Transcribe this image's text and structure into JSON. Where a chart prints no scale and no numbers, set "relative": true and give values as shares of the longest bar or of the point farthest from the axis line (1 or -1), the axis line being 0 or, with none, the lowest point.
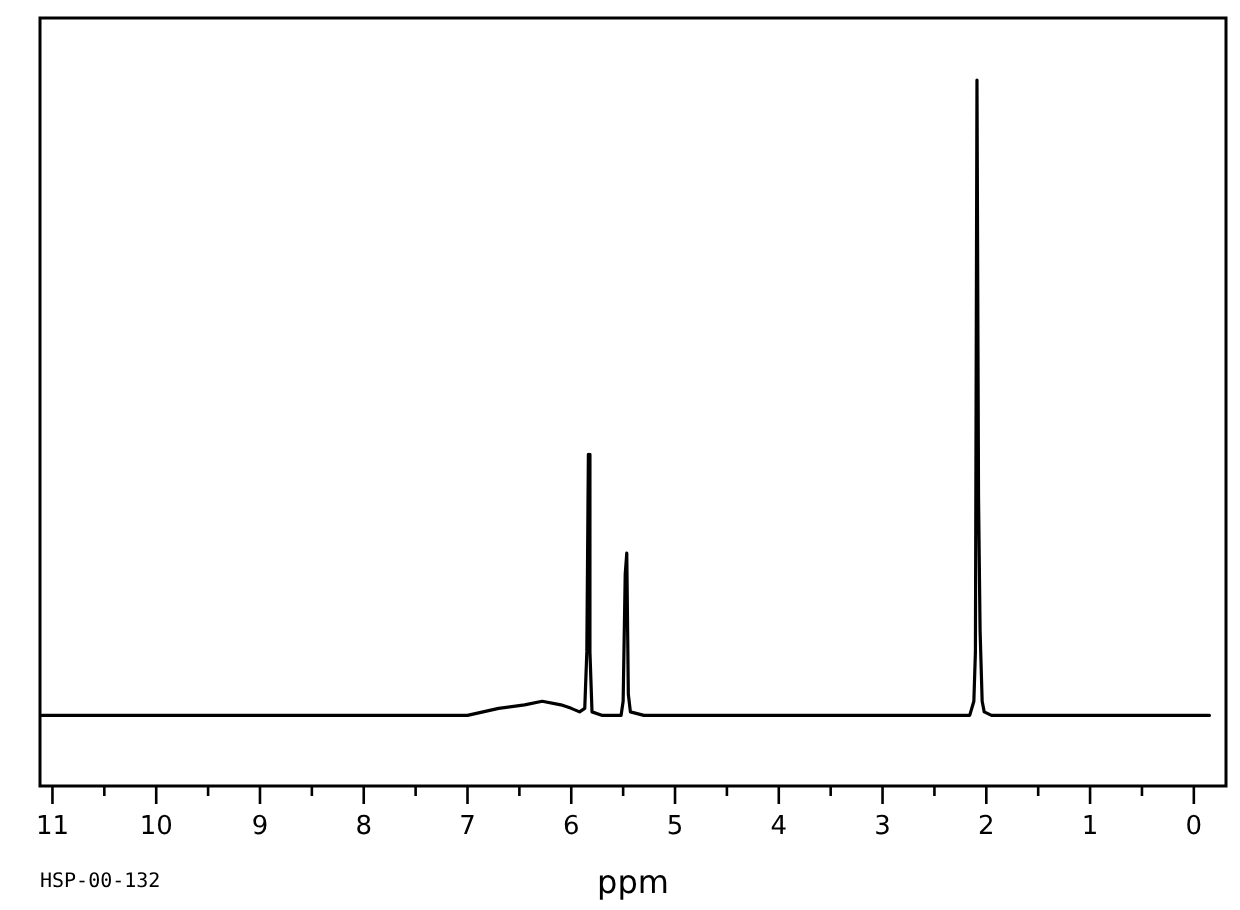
{
  "chart_data": {
    "type": "line",
    "xlabel": "ppm",
    "annotations": [
      "HSP-00-132"
    ],
    "relative": true,
    "marker": "none",
    "xlim": [
      11.12,
      -0.31
    ],
    "xticks": [
      11,
      {
        "value": 10.5,
        "label": null
      },
      10,
      {
        "value": 9.5,
        "label": null
      },
      9,
      {
        "value": 8.5,
        "label": null
      },
      8,
      {
        "value": 7.5,
        "label": null
      },
      7,
      {
        "value": 6.5,
        "label": null
      },
      6,
      {
        "value": 5.5,
        "label": null
      },
      5,
      {
        "value": 4.5,
        "label": null
      },
      4,
      {
        "value": 3.5,
        "label": null
      },
      3,
      {
        "value": 2.5,
        "label": null
      },
      2,
      {
        "value": 1.5,
        "label": null
      },
      1,
      {
        "value": 0.5,
        "label": null
      },
      0
    ],
    "x": [
      11.1,
      10.75,
      10.5,
      10.25,
      10.0,
      9.75,
      9.5,
      9.25,
      9.0,
      8.75,
      8.5,
      8.25,
      8.0,
      7.75,
      7.5,
      7.25,
      7.0,
      6.7,
      6.45,
      6.28,
      6.1,
      6.0,
      5.92,
      5.87,
      5.85,
      5.835,
      5.82,
      5.8,
      5.7,
      5.6,
      5.52,
      5.5,
      5.48,
      5.465,
      5.45,
      5.43,
      5.3,
      5.0,
      4.75,
      4.5,
      4.25,
      4.0,
      3.75,
      3.5,
      3.25,
      3.0,
      2.75,
      2.5,
      2.3,
      2.16,
      2.12,
      2.105,
      2.09,
      2.075,
      2.06,
      2.04,
      2.02,
      1.95,
      1.75,
      1.5,
      1.25,
      1.0,
      0.75,
      0.5,
      0.25,
      0.0,
      -0.15
    ],
    "series": [
      {
        "color": "#000000",
        "values": [
          0.1,
          0.1,
          0.1,
          0.1,
          0.1,
          0.1,
          0.1,
          0.1,
          0.1,
          0.1,
          0.1,
          0.1,
          0.1,
          0.1,
          0.1,
          0.1,
          0.1,
          0.11,
          0.115,
          0.12,
          0.115,
          0.11,
          0.105,
          0.11,
          0.19,
          0.47,
          0.19,
          0.105,
          0.1,
          0.1,
          0.1,
          0.12,
          0.3,
          0.33,
          0.13,
          0.105,
          0.1,
          0.1,
          0.1,
          0.1,
          0.1,
          0.1,
          0.1,
          0.1,
          0.1,
          0.1,
          0.1,
          0.1,
          0.1,
          0.1,
          0.12,
          0.19,
          1.0,
          0.41,
          0.22,
          0.12,
          0.105,
          0.1,
          0.1,
          0.1,
          0.1,
          0.1,
          0.1,
          0.1,
          0.1,
          0.1,
          0.1
        ]
      }
    ]
  }
}
